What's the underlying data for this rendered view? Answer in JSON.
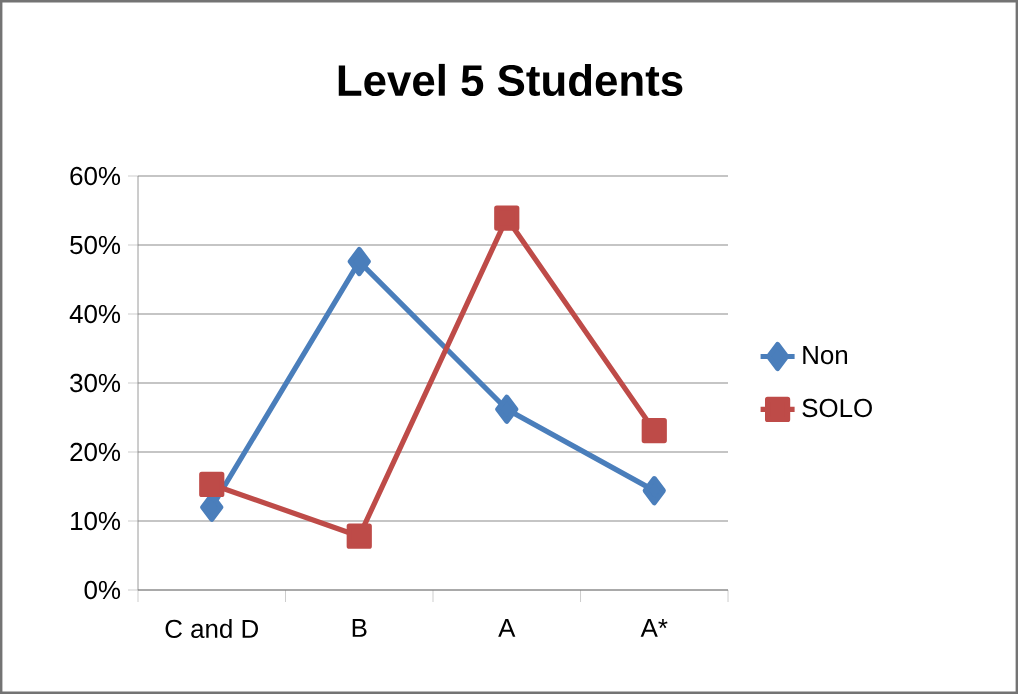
{
  "chart_data": {
    "type": "line",
    "title": "Level 5 Students",
    "categories": [
      "C and D",
      "B",
      "A",
      "A*"
    ],
    "series": [
      {
        "name": "Non",
        "color": "#4a7ebb",
        "marker": "diamond",
        "values": [
          12,
          47.6,
          26.2,
          14.4
        ]
      },
      {
        "name": "SOLO",
        "color": "#be4b48",
        "marker": "square",
        "values": [
          15.3,
          7.8,
          53.9,
          23.1
        ]
      }
    ],
    "ylim": [
      0,
      60
    ],
    "yticks": [
      {
        "value": 0,
        "label": "0%"
      },
      {
        "value": 10,
        "label": "10%"
      },
      {
        "value": 20,
        "label": "20%"
      },
      {
        "value": 30,
        "label": "30%"
      },
      {
        "value": 40,
        "label": "40%"
      },
      {
        "value": 50,
        "label": "50%"
      },
      {
        "value": 60,
        "label": "60%"
      }
    ],
    "grid": "y",
    "legend": "right",
    "line_style": "solid"
  }
}
